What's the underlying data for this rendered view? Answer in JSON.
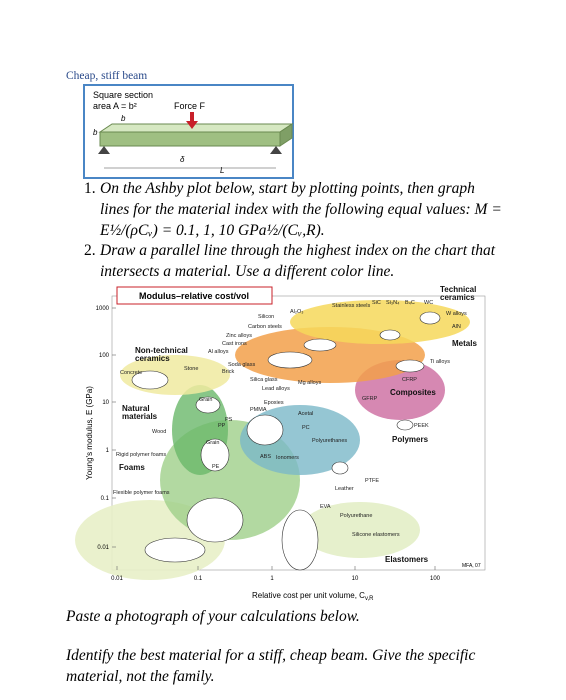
{
  "figure": {
    "caption": "Cheap, stiff beam",
    "section": "Square section",
    "area": "area A = b²",
    "force": "Force F",
    "b_top": "b",
    "b_side": "b",
    "delta": "δ",
    "length": "L"
  },
  "questions": [
    {
      "number": "1.",
      "text": "On the Ashby plot below, start by plotting points, then graph lines for the material index with the following equal values: M = E½/(ρCᵥ) = 0.1, 1, 10 GPa½/(Cᵥ,R)."
    },
    {
      "number": "2.",
      "text": "Draw a parallel line through the highest index on the chart that intersects a material.  Use a different color line."
    }
  ],
  "chart": {
    "title": "Modulus–relative cost/vol",
    "y_label": "Young's modulus, E (GPa)",
    "x_label": "Relative cost per unit volume, C",
    "x_label_sub": "v,R",
    "yticks": [
      "1000",
      "100",
      "10",
      "1",
      "0.1",
      "0.01"
    ],
    "xticks": [
      "0.01",
      "0.1",
      "1",
      "10",
      "100"
    ],
    "families": [
      [
        "Technical",
        "ceramics"
      ],
      [
        "Metals"
      ],
      [
        "Composites"
      ],
      [
        "Polymers"
      ],
      [
        "Elastomers"
      ],
      [
        "Foams"
      ],
      [
        "Natural",
        "materials"
      ],
      [
        "Non-technical",
        "ceramics"
      ]
    ],
    "materials": [
      "Silicon",
      "Al₂O₃",
      "SiC",
      "Si₃N₄",
      "B₄C",
      "WC",
      "Stainless steels",
      "W alloys",
      "AlN",
      "Carbon steels",
      "Zinc alloys",
      "Cast irons",
      "Al alloys",
      "Soda glass",
      "Brick",
      "Stone",
      "Concrete",
      "Ti alloys",
      "CFRP",
      "Silica glass",
      "Mg alloys",
      "Lead alloys",
      "Epoxies",
      "PMMA",
      "GFRP",
      "Grain",
      "PS",
      "PP",
      "Acetal",
      "PC",
      "Polyurethanes",
      "PEEK",
      "Wood",
      "Grain",
      "Rigid polymer foams",
      "ABS",
      "Ionomers",
      "PE",
      "PTFE",
      "Leather",
      "Flexible polymer foams",
      "EVA",
      "Polyurethane",
      "Silicone elastomers"
    ],
    "credit": "MFA, 07"
  },
  "instructions": [
    "Paste a photograph of your calculations below.",
    "Identify the best material for a stiff, cheap beam.  Give the specific material, not the family."
  ]
}
